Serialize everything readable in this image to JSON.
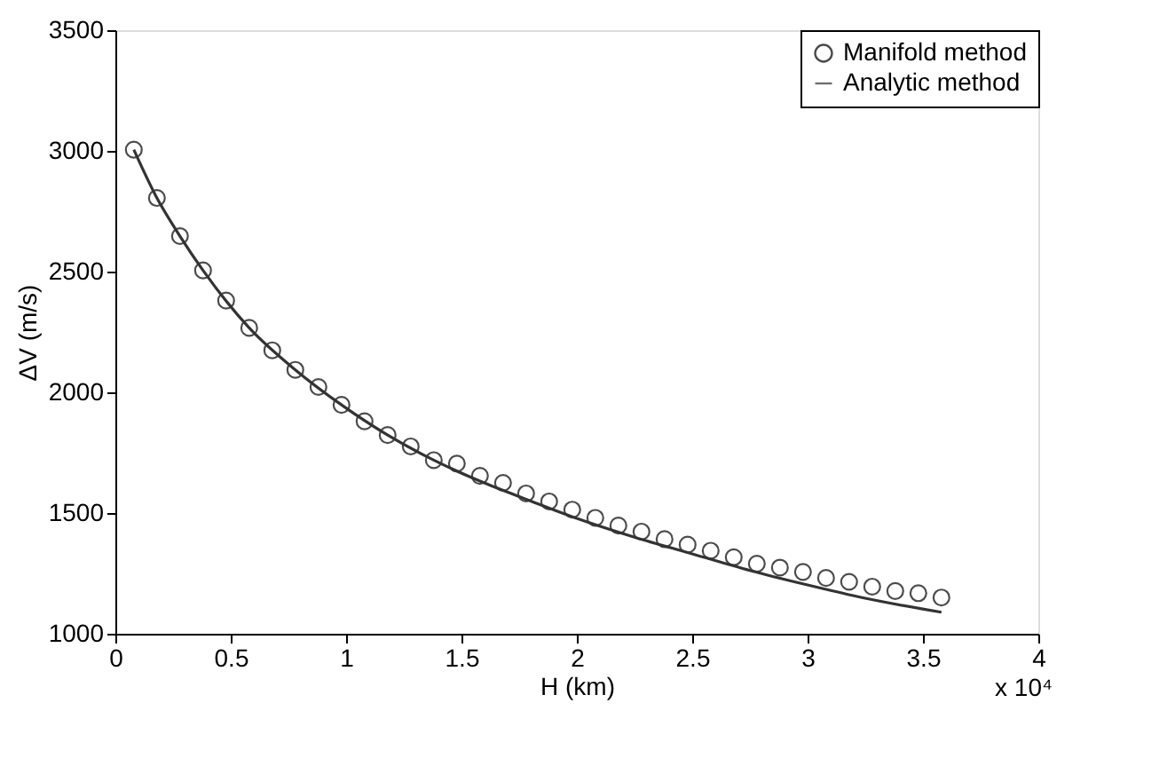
{
  "chart_data": {
    "type": "scatter",
    "xlabel": "H (km)",
    "ylabel": "ΔV (m/s)",
    "xlim": [
      0,
      4
    ],
    "xticks": [
      0,
      0.5,
      1,
      1.5,
      2,
      2.5,
      3,
      3.5,
      4
    ],
    "ylim": [
      1000,
      3500
    ],
    "yticks": [
      1000,
      1500,
      2000,
      2500,
      3000,
      3500
    ],
    "grid": false,
    "legend": "top right",
    "annotations": [
      "x 10⁴"
    ],
    "series": [
      {
        "name": "Manifold method",
        "type": "scatter",
        "marker": "circle",
        "color": "#000000",
        "x": [
          0.08,
          0.18,
          0.28,
          0.38,
          0.48,
          0.58,
          0.68,
          0.78,
          0.88,
          0.98,
          1.08,
          1.18,
          1.28,
          1.38,
          1.48,
          1.58,
          1.68,
          1.78,
          1.88,
          1.98,
          2.08,
          2.18,
          2.28,
          2.38,
          2.48,
          2.58,
          2.68,
          2.78,
          2.88,
          2.98,
          3.08,
          3.18,
          3.28,
          3.38,
          3.48,
          3.58
        ],
        "values": [
          3005,
          2805,
          2647,
          2505,
          2380,
          2267,
          2174,
          2093,
          2022,
          1948,
          1880,
          1823,
          1776,
          1719,
          1705,
          1654,
          1625,
          1581,
          1548,
          1514,
          1480,
          1448,
          1423,
          1392,
          1369,
          1344,
          1317,
          1290,
          1274,
          1256,
          1231,
          1215,
          1195,
          1177,
          1168,
          1150
        ]
      },
      {
        "name": "Analytic method",
        "type": "line",
        "line_style": "solid",
        "color": "#333333",
        "x": [
          0.08,
          0.18,
          0.28,
          0.38,
          0.58,
          0.78,
          0.98,
          1.18,
          1.38,
          1.58,
          1.8,
          2.0,
          2.25,
          2.5,
          2.75,
          3.0,
          3.25,
          3.58
        ],
        "values": [
          3005,
          2805,
          2647,
          2505,
          2267,
          2093,
          1948,
          1823,
          1719,
          1632,
          1550,
          1478,
          1400,
          1331,
          1262,
          1202,
          1147,
          1089
        ]
      }
    ]
  }
}
